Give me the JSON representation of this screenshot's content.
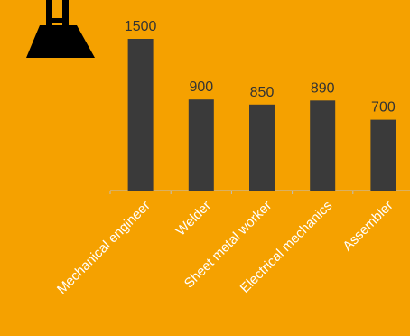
{
  "chart_data": {
    "type": "bar",
    "categories": [
      "Mechanical engineer",
      "Welder",
      "Sheet metal worker",
      "Electrical mechanics",
      "Assembler"
    ],
    "values": [
      1500,
      900,
      850,
      890,
      700
    ],
    "title": "",
    "xlabel": "",
    "ylabel": "",
    "ylim": [
      0,
      1700
    ],
    "grid": false,
    "legend": "none"
  },
  "icons": {
    "weight": "weight-icon"
  },
  "colors": {
    "background": "#F5A100",
    "bar": "#3A3A3A",
    "axis": "#BFBFBF",
    "value_text": "#333333",
    "category_text": "#FFFFFF",
    "icon": "#000000"
  }
}
